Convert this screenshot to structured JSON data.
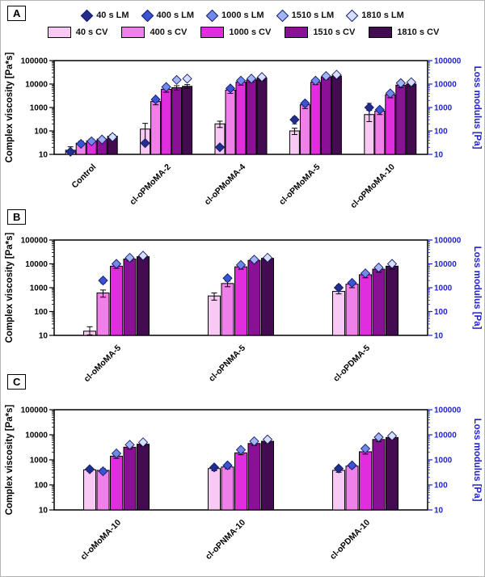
{
  "colors": {
    "axis_right": "#2222cc",
    "diamond_stroke": "#141b66",
    "cv_fills": [
      "#f7c9f3",
      "#ef80e9",
      "#e02ede",
      "#8a1096",
      "#430b50"
    ],
    "lm_fills": [
      "#212e8c",
      "#3a55d4",
      "#7289ec",
      "#a3b4f4",
      "#d6defb"
    ]
  },
  "legend": {
    "lm_items": [
      {
        "label": "40 s LM",
        "color": "#212e8c"
      },
      {
        "label": "400 s LM",
        "color": "#3a55d4"
      },
      {
        "label": "1000 s LM",
        "color": "#7289ec"
      },
      {
        "label": "1510 s LM",
        "color": "#a3b4f4"
      },
      {
        "label": "1810 s LM",
        "color": "#d6defb"
      }
    ],
    "cv_items": [
      {
        "label": "40 s CV",
        "color": "#f7c9f3"
      },
      {
        "label": "400 s CV",
        "color": "#ef80e9"
      },
      {
        "label": "1000 s CV",
        "color": "#e02ede"
      },
      {
        "label": "1510 s CV",
        "color": "#8a1096"
      },
      {
        "label": "1810 s CV",
        "color": "#430b50"
      }
    ]
  },
  "axes": {
    "tick_labels": [
      "10",
      "100",
      "1000",
      "10000",
      "100000"
    ]
  },
  "chart_data": [
    {
      "panel_label": "A",
      "type": "bar",
      "ylabel_left": "Complex viscosity [Pa*s]",
      "ylabel_right": "Loss modulus [Pa]",
      "ylim": [
        10,
        100000
      ],
      "categories": [
        "Control",
        "cl-oPMoMA-2",
        "cl-oPMoMA-4",
        "cl-oPMoMA-5",
        "cl-oPMoMA-10"
      ],
      "cv_series": [
        {
          "name": "40 s CV",
          "values": [
            15,
            120,
            200,
            100,
            500
          ],
          "errors": [
            6,
            90,
            60,
            30,
            250
          ]
        },
        {
          "name": "400 s CV",
          "values": [
            30,
            1800,
            5500,
            1300,
            700
          ],
          "errors": [
            6,
            500,
            1500,
            400,
            200
          ]
        },
        {
          "name": "1000 s CV",
          "values": [
            38,
            6000,
            12000,
            12000,
            3500
          ],
          "errors": [
            7,
            1500,
            3000,
            2500,
            900
          ]
        },
        {
          "name": "1510 s CV",
          "values": [
            45,
            7000,
            15000,
            20000,
            9000
          ],
          "errors": [
            8,
            1500,
            3000,
            4000,
            2000
          ]
        },
        {
          "name": "1810 s CV",
          "values": [
            60,
            8000,
            18000,
            22000,
            10000
          ],
          "errors": [
            10,
            1500,
            4000,
            4000,
            2000
          ]
        }
      ],
      "lm_series": [
        {
          "name": "40 s LM",
          "values": [
            13,
            30,
            20,
            300,
            1000
          ],
          "errors": [
            null,
            null,
            null,
            100,
            500
          ]
        },
        {
          "name": "400 s LM",
          "values": [
            28,
            2200,
            6500,
            1500,
            800
          ],
          "errors": [
            null,
            500,
            null,
            400,
            null
          ]
        },
        {
          "name": "1000 s LM",
          "values": [
            36,
            7500,
            14000,
            14000,
            4000
          ],
          "errors": null
        },
        {
          "name": "1510 s LM",
          "values": [
            43,
            15000,
            17000,
            22000,
            11000
          ],
          "errors": null
        },
        {
          "name": "1810 s LM",
          "values": [
            55,
            17000,
            20000,
            25000,
            12000
          ],
          "errors": null
        }
      ]
    },
    {
      "panel_label": "B",
      "type": "bar",
      "ylabel_left": "Complex viscosity [Pa*s]",
      "ylabel_right": "Loss modulus [Pa]",
      "ylim": [
        10,
        100000
      ],
      "categories": [
        "cl-oMoMA-5",
        "cl-oPNMA-5",
        "cl-oPDMA-5"
      ],
      "cv_series": [
        {
          "name": "40 s CV",
          "values": [
            15,
            450,
            700
          ],
          "errors": [
            8,
            150,
            150
          ]
        },
        {
          "name": "400 s CV",
          "values": [
            600,
            1500,
            1400
          ],
          "errors": [
            200,
            400,
            400
          ]
        },
        {
          "name": "1000 s CV",
          "values": [
            8000,
            7500,
            3500
          ],
          "errors": [
            1500,
            1500,
            900
          ]
        },
        {
          "name": "1510 s CV",
          "values": [
            16000,
            14000,
            6000
          ],
          "errors": [
            2500,
            2500,
            1500
          ]
        },
        {
          "name": "1810 s CV",
          "values": [
            20000,
            17000,
            8000
          ],
          "errors": [
            3000,
            3000,
            2000
          ]
        }
      ],
      "lm_series": [
        {
          "name": "40 s LM",
          "values": [
            null,
            null,
            1000
          ],
          "errors": [
            null,
            null,
            300
          ]
        },
        {
          "name": "400 s LM",
          "values": [
            2000,
            2500,
            1600
          ],
          "errors": [
            500,
            600,
            null
          ]
        },
        {
          "name": "1000 s LM",
          "values": [
            10000,
            9000,
            4000
          ],
          "errors": null
        },
        {
          "name": "1510 s LM",
          "values": [
            18000,
            15000,
            7000
          ],
          "errors": null
        },
        {
          "name": "1810 s LM",
          "values": [
            22000,
            18000,
            10000
          ],
          "errors": null
        }
      ]
    },
    {
      "panel_label": "C",
      "type": "bar",
      "ylabel_left": "Complex viscosity [Pa*s]",
      "ylabel_right": "Loss modulus [Pa]",
      "ylim": [
        10,
        100000
      ],
      "categories": [
        "cl-oMoMA-10",
        "cl-oPNMA-10",
        "cl-oPDMA-10"
      ],
      "cv_series": [
        {
          "name": "40 s CV",
          "values": [
            400,
            450,
            380
          ],
          "errors": [
            60,
            80,
            60
          ]
        },
        {
          "name": "400 s CV",
          "values": [
            380,
            520,
            560
          ],
          "errors": [
            60,
            80,
            80
          ]
        },
        {
          "name": "1000 s CV",
          "values": [
            1400,
            1900,
            2100
          ],
          "errors": [
            250,
            300,
            400
          ]
        },
        {
          "name": "1510 s CV",
          "values": [
            3200,
            4500,
            6500
          ],
          "errors": [
            500,
            700,
            1200
          ]
        },
        {
          "name": "1810 s CV",
          "values": [
            4200,
            5500,
            7800
          ],
          "errors": [
            600,
            800,
            1200
          ]
        }
      ],
      "lm_series": [
        {
          "name": "40 s LM",
          "values": [
            420,
            500,
            450
          ],
          "errors": [
            80,
            100,
            90
          ]
        },
        {
          "name": "400 s LM",
          "values": [
            350,
            600,
            600
          ],
          "errors": [
            70,
            100,
            100
          ]
        },
        {
          "name": "1000 s LM",
          "values": [
            1800,
            2500,
            2800
          ],
          "errors": [
            300,
            400,
            450
          ]
        },
        {
          "name": "1510 s LM",
          "values": [
            4000,
            5500,
            8000
          ],
          "errors": null
        },
        {
          "name": "1810 s LM",
          "values": [
            5000,
            6500,
            9000
          ],
          "errors": null
        }
      ]
    }
  ]
}
